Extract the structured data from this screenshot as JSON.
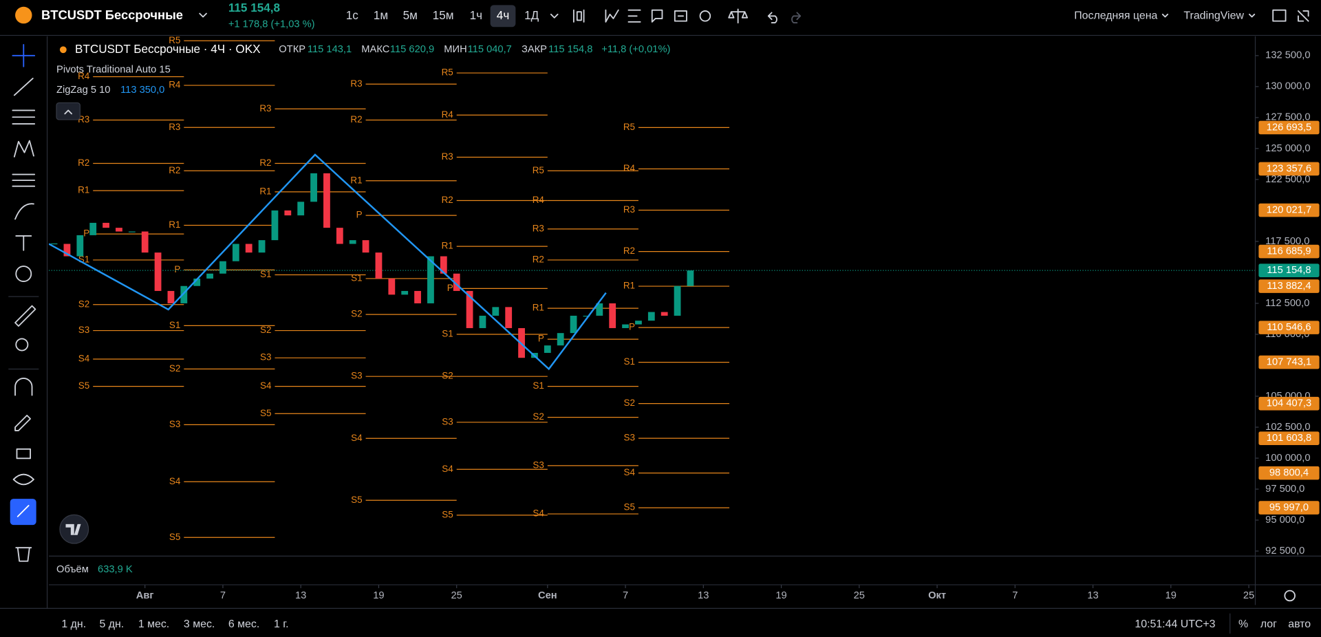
{
  "header": {
    "symbol": "BTCUSDT Бессрочные",
    "price": "115 154,8",
    "change": "+1 178,8 (+1,03 %)",
    "intervals": [
      "1с",
      "1м",
      "5м",
      "15м",
      "1ч",
      "4ч",
      "1Д"
    ],
    "price_type": "Последняя цена",
    "source": "TradingView"
  },
  "legend": {
    "title": "BTCUSDT Бессрочные · 4Ч · OKX",
    "open_label": "ОТКР",
    "open": "115 143,1",
    "high_label": "МАКС",
    "high": "115 620,9",
    "low_label": "МИН",
    "low": "115 040,7",
    "close_label": "ЗАКР",
    "close": "115 154,8",
    "change": "+11,8 (+0,01%)",
    "pivots": "Pivots Traditional Auto 15",
    "zigzag": "ZigZag 5 10",
    "zigzag_value": "113 350,0"
  },
  "chart_data": {
    "type": "candlestick",
    "xlim": [
      -7.4,
      85.5
    ],
    "xticks": [
      {
        "value": 0,
        "label": "Авг"
      },
      {
        "value": 6,
        "label": "7"
      },
      {
        "value": 12,
        "label": "13"
      },
      {
        "value": 18,
        "label": "19"
      },
      {
        "value": 24,
        "label": "25"
      },
      {
        "value": 31,
        "label": "Сен"
      },
      {
        "value": 37,
        "label": "7"
      },
      {
        "value": 43,
        "label": "13"
      },
      {
        "value": 49,
        "label": "19"
      },
      {
        "value": 55,
        "label": "25"
      },
      {
        "value": 61,
        "label": "Окт"
      },
      {
        "value": 67,
        "label": "7"
      },
      {
        "value": 73,
        "label": "13"
      },
      {
        "value": 79,
        "label": "19"
      },
      {
        "value": 85,
        "label": "25"
      }
    ],
    "ylim": [
      92092,
      134065
    ],
    "yticks": [
      {
        "value": 132500,
        "label": "132 500,0"
      },
      {
        "value": 130000,
        "label": "130 000,0"
      },
      {
        "value": 127500,
        "label": "127 500,0"
      },
      {
        "value": 125000,
        "label": "125 000,0"
      },
      {
        "value": 122500,
        "label": "122 500,0"
      },
      {
        "value": 117500,
        "label": "117 500,0"
      },
      {
        "value": 112500,
        "label": "112 500,0"
      },
      {
        "value": 110000,
        "label": "110 000,0"
      },
      {
        "value": 105000,
        "label": "105 000,0"
      },
      {
        "value": 102500,
        "label": "102 500,0"
      },
      {
        "value": 100000,
        "label": "100 000,0"
      },
      {
        "value": 97500,
        "label": "97 500,0"
      },
      {
        "value": 95000,
        "label": "95 000,0"
      },
      {
        "value": 92500,
        "label": "92 500,0"
      }
    ],
    "up_color": "#089981",
    "down_color": "#f23645",
    "x": [
      -7,
      -6,
      -5,
      -4,
      -3,
      -2,
      -1,
      0,
      1,
      2,
      3,
      4,
      5,
      6,
      7,
      8,
      9,
      10,
      11,
      12,
      13,
      14,
      15,
      16,
      17,
      18,
      19,
      20,
      21,
      22,
      23,
      24,
      25,
      26,
      27,
      28,
      29,
      30,
      31,
      32,
      33,
      34,
      35,
      36,
      37,
      38,
      39,
      40,
      41,
      42
    ],
    "values": [
      117300,
      116300,
      118000,
      119000,
      118600,
      118300,
      118300,
      116600,
      113500,
      112500,
      113900,
      114500,
      114900,
      115900,
      117300,
      116600,
      117600,
      120000,
      119600,
      120700,
      123000,
      118600,
      117300,
      117600,
      116600,
      114500,
      113200,
      113500,
      112500,
      116300,
      114900,
      113500,
      110500,
      111500,
      112200,
      110500,
      108100,
      108500,
      109100,
      110100,
      111500,
      111500,
      112500,
      110500,
      110800,
      111100,
      111800,
      111500,
      113900,
      115154.8
    ],
    "last_price": {
      "value": 115154.8,
      "label": "115 154,8",
      "color": "#089981"
    },
    "zigzag": {
      "color": "#2196f3",
      "x": [
        -7.4,
        1.8,
        13.1,
        31.1,
        35.5
      ],
      "values": [
        117300,
        112000,
        124500,
        107200,
        113350
      ]
    },
    "pivot_color": "#e8861b",
    "pivots": [
      {
        "start": -4,
        "end": 3,
        "levels": [
          {
            "name": "R4",
            "value": 130800
          },
          {
            "name": "R3",
            "value": 127300
          },
          {
            "name": "R2",
            "value": 123800
          },
          {
            "name": "R1",
            "value": 121600
          },
          {
            "name": "P",
            "value": 118100
          },
          {
            "name": "S1",
            "value": 116000
          },
          {
            "name": "S2",
            "value": 112400
          },
          {
            "name": "S3",
            "value": 110300
          },
          {
            "name": "S4",
            "value": 108000
          },
          {
            "name": "S5",
            "value": 105800
          }
        ]
      },
      {
        "start": 3,
        "end": 10,
        "levels": [
          {
            "name": "R5",
            "value": 133700
          },
          {
            "name": "R4",
            "value": 130100
          },
          {
            "name": "R3",
            "value": 126700
          },
          {
            "name": "R2",
            "value": 123200
          },
          {
            "name": "R1",
            "value": 118800
          },
          {
            "name": "P",
            "value": 115200
          },
          {
            "name": "S1",
            "value": 110700
          },
          {
            "name": "S2",
            "value": 107200
          },
          {
            "name": "S3",
            "value": 102700
          },
          {
            "name": "S4",
            "value": 98100
          },
          {
            "name": "S5",
            "value": 93600
          }
        ]
      },
      {
        "start": 10,
        "end": 17,
        "levels": [
          {
            "name": "R3",
            "value": 128200
          },
          {
            "name": "R2",
            "value": 123800
          },
          {
            "name": "R1",
            "value": 121500
          },
          {
            "name": "S1",
            "value": 114800
          },
          {
            "name": "S2",
            "value": 110300
          },
          {
            "name": "S3",
            "value": 108100
          },
          {
            "name": "S4",
            "value": 105800
          },
          {
            "name": "S5",
            "value": 103600
          }
        ]
      },
      {
        "start": 17,
        "end": 24,
        "levels": [
          {
            "name": "R3",
            "value": 130200
          },
          {
            "name": "R2",
            "value": 127300
          },
          {
            "name": "R1",
            "value": 122400
          },
          {
            "name": "P",
            "value": 119600
          },
          {
            "name": "S1",
            "value": 114500
          },
          {
            "name": "S2",
            "value": 111600
          },
          {
            "name": "S3",
            "value": 106600
          },
          {
            "name": "S4",
            "value": 101600
          },
          {
            "name": "S5",
            "value": 96600
          }
        ]
      },
      {
        "start": 24,
        "end": 31,
        "levels": [
          {
            "name": "R5",
            "value": 131100
          },
          {
            "name": "R4",
            "value": 127700
          },
          {
            "name": "R3",
            "value": 124300
          },
          {
            "name": "R2",
            "value": 120800
          },
          {
            "name": "R1",
            "value": 117100
          },
          {
            "name": "P",
            "value": 113700
          },
          {
            "name": "S1",
            "value": 110000
          },
          {
            "name": "S2",
            "value": 106600
          },
          {
            "name": "S3",
            "value": 102900
          },
          {
            "name": "S4",
            "value": 99100
          },
          {
            "name": "S5",
            "value": 95400
          }
        ]
      },
      {
        "start": 31,
        "end": 38,
        "levels": [
          {
            "name": "R5",
            "value": 123200
          },
          {
            "name": "R4",
            "value": 120800
          },
          {
            "name": "R3",
            "value": 118500
          },
          {
            "name": "R2",
            "value": 116000
          },
          {
            "name": "R1",
            "value": 112100
          },
          {
            "name": "P",
            "value": 109600
          },
          {
            "name": "S1",
            "value": 105800
          },
          {
            "name": "S2",
            "value": 103300
          },
          {
            "name": "S3",
            "value": 99400
          },
          {
            "name": "S4",
            "value": 95500
          }
        ]
      },
      {
        "start": 38,
        "end": 45,
        "levels": [
          {
            "name": "R5",
            "value": 126693.5,
            "label": "126 693,5"
          },
          {
            "name": "R4",
            "value": 123357.6,
            "label": "123 357,6"
          },
          {
            "name": "R3",
            "value": 120021.7,
            "label": "120 021,7"
          },
          {
            "name": "R2",
            "value": 116685.9,
            "label": "116 685,9"
          },
          {
            "name": "R1",
            "value": 113882.4,
            "label": "113 882,4"
          },
          {
            "name": "P",
            "value": 110546.6,
            "label": "110 546,6"
          },
          {
            "name": "S1",
            "value": 107743.1,
            "label": "107 743,1"
          },
          {
            "name": "S2",
            "value": 104407.3,
            "label": "104 407,3"
          },
          {
            "name": "S3",
            "value": 101603.8,
            "label": "101 603,8"
          },
          {
            "name": "S4",
            "value": 98800.4,
            "label": "98 800,4"
          },
          {
            "name": "S5",
            "value": 95997.0,
            "label": "95 997,0"
          }
        ]
      }
    ]
  },
  "volume": {
    "label": "Объём",
    "value": "633,9 K"
  },
  "footer": {
    "ranges": [
      "1 дн.",
      "5 дн.",
      "1 мес.",
      "3 мес.",
      "6 мес.",
      "1 г."
    ],
    "clock": "10:51:44 UTC+3",
    "percent": "%",
    "log": "лог",
    "auto": "авто"
  }
}
